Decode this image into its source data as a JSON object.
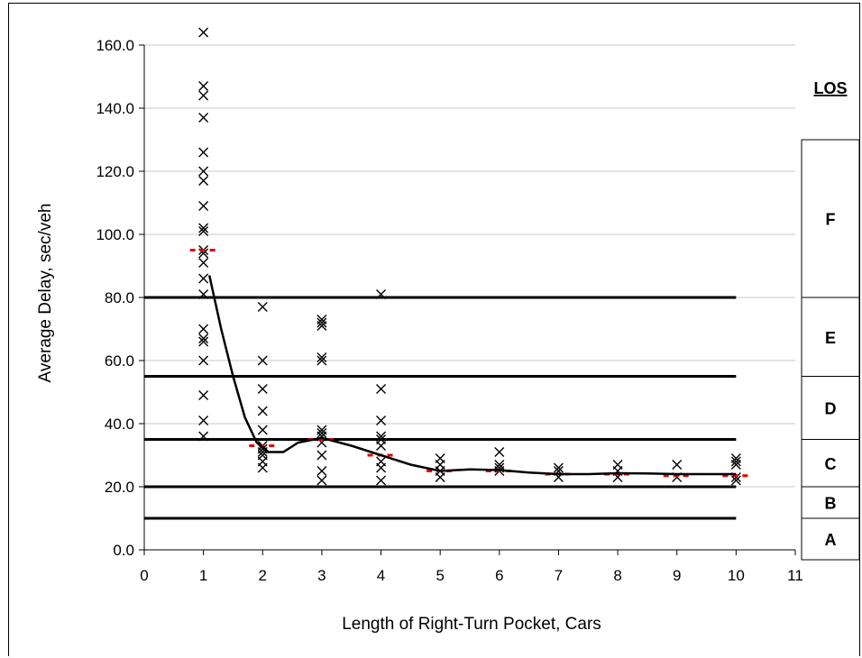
{
  "chart_data": {
    "type": "scatter",
    "xlabel": "Length of Right-Turn Pocket, Cars",
    "ylabel": "Average Delay, sec/veh",
    "xlim": [
      0,
      11
    ],
    "ylim": [
      0,
      160
    ],
    "x_ticks": [
      "0",
      "1",
      "2",
      "3",
      "4",
      "5",
      "6",
      "7",
      "8",
      "9",
      "10",
      "11"
    ],
    "y_ticks": [
      "0.0",
      "20.0",
      "40.0",
      "60.0",
      "80.0",
      "100.0",
      "120.0",
      "140.0",
      "160.0"
    ],
    "grid": "horizontal",
    "series": [
      {
        "marker": "x",
        "points": [
          [
            1,
            164
          ],
          [
            1,
            147
          ],
          [
            1,
            144
          ],
          [
            1,
            137
          ],
          [
            1,
            126
          ],
          [
            1,
            120
          ],
          [
            1,
            117
          ],
          [
            1,
            109
          ],
          [
            1,
            102
          ],
          [
            1,
            101
          ],
          [
            1,
            95
          ],
          [
            1,
            94
          ],
          [
            1,
            91
          ],
          [
            1,
            86
          ],
          [
            1,
            81
          ],
          [
            1,
            70
          ],
          [
            1,
            67
          ],
          [
            1,
            66
          ],
          [
            1,
            60
          ],
          [
            1,
            49
          ],
          [
            1,
            41
          ],
          [
            1,
            36
          ],
          [
            2,
            77
          ],
          [
            2,
            60
          ],
          [
            2,
            51
          ],
          [
            2,
            44
          ],
          [
            2,
            38
          ],
          [
            2,
            33
          ],
          [
            2,
            32
          ],
          [
            2,
            31
          ],
          [
            2,
            30
          ],
          [
            2,
            28
          ],
          [
            2,
            26
          ],
          [
            3,
            73
          ],
          [
            3,
            72
          ],
          [
            3,
            71
          ],
          [
            3,
            61
          ],
          [
            3,
            60
          ],
          [
            3,
            38
          ],
          [
            3,
            37
          ],
          [
            3,
            36
          ],
          [
            3,
            34
          ],
          [
            3,
            30
          ],
          [
            3,
            25
          ],
          [
            3,
            22
          ],
          [
            4,
            81
          ],
          [
            4,
            51
          ],
          [
            4,
            41
          ],
          [
            4,
            36
          ],
          [
            4,
            35
          ],
          [
            4,
            33
          ],
          [
            4,
            28
          ],
          [
            4,
            26
          ],
          [
            4,
            22
          ],
          [
            5,
            29
          ],
          [
            5,
            27
          ],
          [
            5,
            25
          ],
          [
            5,
            23
          ],
          [
            6,
            31
          ],
          [
            6,
            27
          ],
          [
            6,
            26
          ],
          [
            6,
            25
          ],
          [
            7,
            26
          ],
          [
            7,
            25
          ],
          [
            7,
            23
          ],
          [
            8,
            27
          ],
          [
            8,
            25
          ],
          [
            8,
            23
          ],
          [
            9,
            27
          ],
          [
            9,
            23
          ],
          [
            10,
            29
          ],
          [
            10,
            28
          ],
          [
            10,
            27
          ],
          [
            10,
            23
          ],
          [
            10,
            22
          ]
        ]
      },
      {
        "marker": "red-dash",
        "points": [
          [
            1,
            95
          ],
          [
            2,
            33
          ],
          [
            3,
            35
          ],
          [
            4,
            30
          ],
          [
            5,
            25
          ],
          [
            6,
            25
          ],
          [
            7,
            24
          ],
          [
            8,
            24
          ],
          [
            9,
            23.5
          ],
          [
            10,
            23.5
          ]
        ]
      },
      {
        "marker": "line",
        "points": [
          [
            1.1,
            87
          ],
          [
            1.3,
            70
          ],
          [
            1.5,
            55
          ],
          [
            1.7,
            42
          ],
          [
            1.9,
            34
          ],
          [
            2.1,
            31
          ],
          [
            2.35,
            31
          ],
          [
            2.6,
            34
          ],
          [
            3,
            35.5
          ],
          [
            3.5,
            33
          ],
          [
            4,
            30
          ],
          [
            4.5,
            27
          ],
          [
            5,
            25
          ],
          [
            5.5,
            25.5
          ],
          [
            6,
            25.3
          ],
          [
            6.5,
            24.5
          ],
          [
            7,
            24
          ],
          [
            7.5,
            24
          ],
          [
            8,
            24.3
          ],
          [
            8.5,
            24.2
          ],
          [
            9,
            24
          ],
          [
            9.5,
            24
          ],
          [
            10,
            24
          ]
        ]
      }
    ],
    "thresholds": [
      10,
      20,
      35,
      55,
      80
    ],
    "threshold_xmax": 10,
    "los": {
      "title": "LOS",
      "levels": [
        {
          "label": "A",
          "min": 0,
          "max": 10
        },
        {
          "label": "B",
          "min": 10,
          "max": 20
        },
        {
          "label": "C",
          "min": 20,
          "max": 35
        },
        {
          "label": "D",
          "min": 35,
          "max": 55
        },
        {
          "label": "E",
          "min": 55,
          "max": 80
        },
        {
          "label": "F",
          "min": 80,
          "max": 130
        }
      ]
    }
  }
}
